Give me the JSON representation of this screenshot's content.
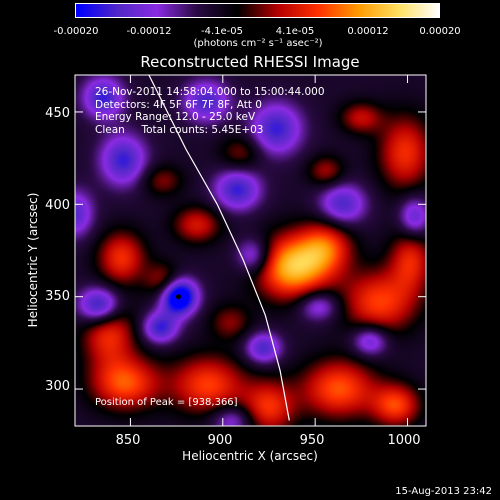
{
  "chart_data": {
    "type": "heatmap",
    "title": "Reconstructed RHESSI Image",
    "xlabel": "Heliocentric X (arcsec)",
    "ylabel": "Heliocentric Y (arcsec)",
    "xlim": [
      820,
      1010
    ],
    "ylim": [
      280,
      470
    ],
    "x_ticks": [
      850,
      900,
      950,
      1000
    ],
    "y_ticks": [
      300,
      350,
      400,
      450
    ],
    "x_tick_labels": [
      "850",
      "900",
      "950",
      "1000"
    ],
    "y_tick_labels": [
      "300",
      "350",
      "400",
      "450"
    ],
    "colorbar": {
      "range": [
        -0.0002,
        0.0002
      ],
      "tick_labels": [
        "-0.00020",
        "-0.00012",
        "-4.1e-05",
        "4.1e-05",
        "0.00012",
        "0.00020"
      ],
      "tick_values": [
        -0.0002,
        -0.00012,
        -4.1e-05,
        4.1e-05,
        0.00012,
        0.0002
      ],
      "units": "(photons cm⁻² s⁻¹ asec⁻²)",
      "colors": [
        "#0000ff",
        "#5028c8",
        "#8a2be2",
        "#2a0a44",
        "#000000",
        "#b40000",
        "#ff3000",
        "#ff9a00",
        "#ffe060",
        "#ffffff"
      ]
    },
    "annotation_lines": [
      "26-Nov-2011 14:58:04.000 to 15:00:44.000",
      "Detectors: 4F 5F 6F 7F 8F, Att 0",
      "Energy Range: 12.0 - 25.0 keV",
      "Clean     Total counts: 5.45E+03"
    ],
    "peak_label": "Position of Peak = [938,366]",
    "peak": [
      938,
      366
    ],
    "min_marker": [
      876,
      350
    ],
    "limb": [
      [
        860,
        470
      ],
      [
        880,
        430
      ],
      [
        897,
        400
      ],
      [
        911,
        370
      ],
      [
        923,
        340
      ],
      [
        931,
        310
      ],
      [
        936,
        283
      ]
    ],
    "sources": [
      {
        "x": 938,
        "y": 366,
        "sx": 14,
        "sy": 12,
        "a": 0.000185
      },
      {
        "x": 956,
        "y": 377,
        "sx": 10,
        "sy": 10,
        "a": 0.00011
      },
      {
        "x": 845,
        "y": 371,
        "sx": 9,
        "sy": 10,
        "a": 0.00011
      },
      {
        "x": 868,
        "y": 358,
        "sx": 7,
        "sy": 7,
        "a": 8e-05
      },
      {
        "x": 985,
        "y": 347,
        "sx": 14,
        "sy": 12,
        "a": 0.00012
      },
      {
        "x": 1002,
        "y": 370,
        "sx": 8,
        "sy": 12,
        "a": 0.0001
      },
      {
        "x": 886,
        "y": 389,
        "sx": 9,
        "sy": 7,
        "a": 9e-05
      },
      {
        "x": 904,
        "y": 336,
        "sx": 8,
        "sy": 7,
        "a": 6e-05
      },
      {
        "x": 838,
        "y": 330,
        "sx": 10,
        "sy": 12,
        "a": 0.00011
      },
      {
        "x": 847,
        "y": 303,
        "sx": 13,
        "sy": 10,
        "a": 0.00013
      },
      {
        "x": 892,
        "y": 302,
        "sx": 14,
        "sy": 11,
        "a": 0.00012
      },
      {
        "x": 925,
        "y": 290,
        "sx": 10,
        "sy": 10,
        "a": 0.00011
      },
      {
        "x": 963,
        "y": 300,
        "sx": 14,
        "sy": 11,
        "a": 0.00013
      },
      {
        "x": 994,
        "y": 291,
        "sx": 9,
        "sy": 8,
        "a": 0.00012
      },
      {
        "x": 999,
        "y": 428,
        "sx": 10,
        "sy": 14,
        "a": 0.00011
      },
      {
        "x": 975,
        "y": 447,
        "sx": 8,
        "sy": 6,
        "a": 8e-05
      },
      {
        "x": 956,
        "y": 418,
        "sx": 7,
        "sy": 6,
        "a": 7e-05
      },
      {
        "x": 910,
        "y": 428,
        "sx": 8,
        "sy": 7,
        "a": 6e-05
      },
      {
        "x": 867,
        "y": 413,
        "sx": 8,
        "sy": 6,
        "a": 6e-05
      },
      {
        "x": 876,
        "y": 350,
        "sx": 7,
        "sy": 7,
        "a": -0.00021
      },
      {
        "x": 833,
        "y": 345,
        "sx": 8,
        "sy": 7,
        "a": -0.00015
      },
      {
        "x": 846,
        "y": 424,
        "sx": 9,
        "sy": 10,
        "a": -0.00012
      },
      {
        "x": 908,
        "y": 408,
        "sx": 9,
        "sy": 8,
        "a": -0.00012
      },
      {
        "x": 929,
        "y": 441,
        "sx": 10,
        "sy": 10,
        "a": -0.00012
      },
      {
        "x": 965,
        "y": 400,
        "sx": 9,
        "sy": 8,
        "a": -0.00011
      },
      {
        "x": 917,
        "y": 372,
        "sx": 7,
        "sy": 7,
        "a": -0.0001
      },
      {
        "x": 980,
        "y": 326,
        "sx": 7,
        "sy": 6,
        "a": -0.0001
      },
      {
        "x": 922,
        "y": 322,
        "sx": 7,
        "sy": 6,
        "a": -0.00011
      },
      {
        "x": 866,
        "y": 333,
        "sx": 7,
        "sy": 6,
        "a": -0.00012
      },
      {
        "x": 1004,
        "y": 393,
        "sx": 6,
        "sy": 8,
        "a": -0.0001
      },
      {
        "x": 905,
        "y": 283,
        "sx": 8,
        "sy": 6,
        "a": -8e-05
      },
      {
        "x": 952,
        "y": 345,
        "sx": 8,
        "sy": 6,
        "a": -9e-05
      },
      {
        "x": 891,
        "y": 456,
        "sx": 9,
        "sy": 8,
        "a": -0.00011
      },
      {
        "x": 835,
        "y": 458,
        "sx": 8,
        "sy": 8,
        "a": -0.00012
      },
      {
        "x": 820,
        "y": 395,
        "sx": 7,
        "sy": 9,
        "a": -0.0001
      }
    ]
  },
  "timestamp": "15-Aug-2013 23:42"
}
